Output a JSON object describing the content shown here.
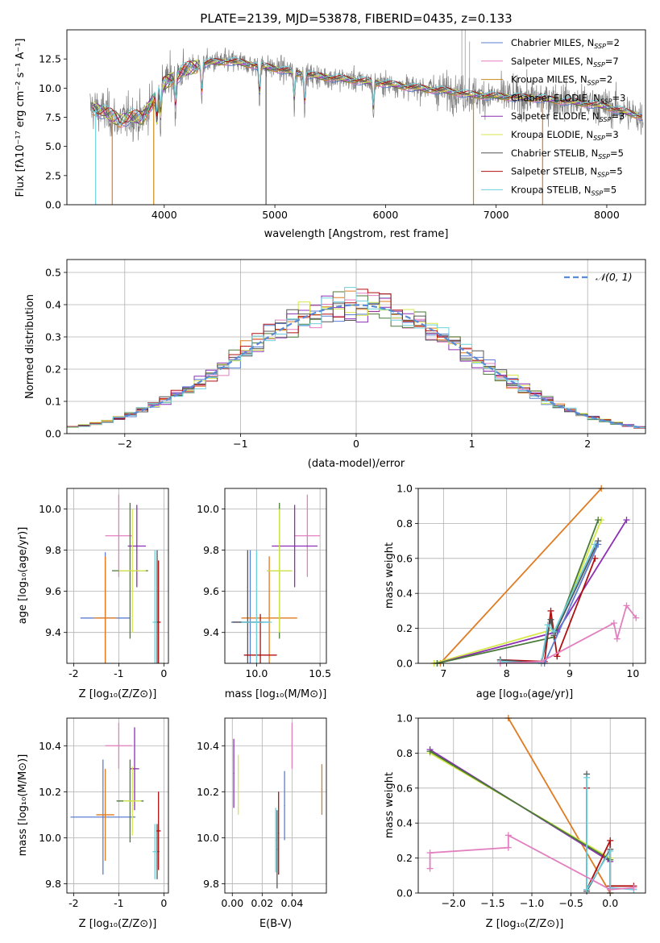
{
  "colors": {
    "chabrier_miles": "#5b7fd3",
    "salpeter_miles": "#e27fbf",
    "kroupa_miles": "#c98a1a",
    "chabrier_elodie": "#4a7a3a",
    "salpeter_elodie": "#8c2fb5",
    "kroupa_elodie": "#d6e84a",
    "chabrier_stelib": "#555555",
    "salpeter_stelib": "#b01010",
    "kroupa_stelib": "#6ed0dc",
    "normal_curve": "#5b8ad6",
    "orange": "#e07b22"
  },
  "chart_data": [
    {
      "id": "spectrum",
      "type": "line",
      "title": "PLATE=2139, MJD=53878, FIBERID=0435, z=0.133",
      "xlabel": "wavelength [Angstrom, rest frame]",
      "ylabel": "Flux [fλ10⁻¹⁷ erg cm⁻² s⁻¹ A⁻¹]",
      "xlim": [
        3120,
        8350
      ],
      "ylim": [
        0,
        15
      ],
      "xticks": [
        4000,
        5000,
        6000,
        7000,
        8000
      ],
      "yticks": [
        "0.0",
        "2.5",
        "5.0",
        "7.5",
        "10.0",
        "12.5"
      ],
      "grid": false,
      "legend_position": "right",
      "legend": [
        {
          "label": "Chabrier MILES, N",
          "sub": "SSP",
          "eq": "=2",
          "color_key": "chabrier_miles"
        },
        {
          "label": "Salpeter MILES, N",
          "sub": "SSP",
          "eq": "=7",
          "color_key": "salpeter_miles"
        },
        {
          "label": "Kroupa MILES, N",
          "sub": "SSP",
          "eq": "=2",
          "color_key": "kroupa_miles"
        },
        {
          "label": "Chabrier ELODIE, N",
          "sub": "SSP",
          "eq": "=3",
          "color_key": "chabrier_elodie"
        },
        {
          "label": "Salpeter ELODIE, N",
          "sub": "SSP",
          "eq": "=3",
          "color_key": "salpeter_elodie"
        },
        {
          "label": "Kroupa ELODIE, N",
          "sub": "SSP",
          "eq": "=3",
          "color_key": "kroupa_elodie"
        },
        {
          "label": "Chabrier STELIB, N",
          "sub": "SSP",
          "eq": "=5",
          "color_key": "chabrier_stelib"
        },
        {
          "label": "Salpeter STELIB, N",
          "sub": "SSP",
          "eq": "=5",
          "color_key": "salpeter_stelib"
        },
        {
          "label": "Kroupa STELIB, N",
          "sub": "SSP",
          "eq": "=5",
          "color_key": "kroupa_stelib"
        }
      ],
      "continuum": [
        [
          3350,
          8.3
        ],
        [
          3450,
          8.0
        ],
        [
          3600,
          7.2
        ],
        [
          3700,
          7.6
        ],
        [
          3800,
          7.4
        ],
        [
          3900,
          9.0
        ],
        [
          4000,
          10.4
        ],
        [
          4200,
          11.6
        ],
        [
          4400,
          12.2
        ],
        [
          4600,
          12.3
        ],
        [
          4800,
          12.0
        ],
        [
          5000,
          11.7
        ],
        [
          5200,
          11.3
        ],
        [
          5400,
          11.0
        ],
        [
          5600,
          10.8
        ],
        [
          5800,
          10.6
        ],
        [
          6000,
          10.4
        ],
        [
          6200,
          10.1
        ],
        [
          6400,
          9.9
        ],
        [
          6600,
          9.7
        ],
        [
          6800,
          9.4
        ],
        [
          7000,
          9.3
        ],
        [
          7200,
          9.2
        ],
        [
          7400,
          9.1
        ],
        [
          7600,
          8.9
        ],
        [
          7800,
          8.7
        ],
        [
          8000,
          8.4
        ],
        [
          8150,
          8.0
        ],
        [
          8300,
          7.6
        ]
      ],
      "drops": [
        {
          "x": 3380,
          "color_key": "kroupa_stelib"
        },
        {
          "x": 3530,
          "color_key": "orange"
        },
        {
          "x": 3905,
          "color_key": "kroupa_miles"
        },
        {
          "x": 4920,
          "color_key": "chabrier_stelib"
        },
        {
          "x": 6795,
          "color_key": "kroupa_miles"
        },
        {
          "x": 7420,
          "color_key": "orange"
        }
      ]
    },
    {
      "id": "residuals",
      "type": "step",
      "xlabel": "(data-model)/error",
      "ylabel": "Normed distribution",
      "xlim": [
        -2.5,
        2.5
      ],
      "ylim": [
        0,
        0.54
      ],
      "xticks": [
        "−2",
        "−1",
        "0",
        "1",
        "2"
      ],
      "yticks": [
        "0.0",
        "0.1",
        "0.2",
        "0.3",
        "0.4",
        "0.5"
      ],
      "grid": true,
      "legend_position": "top-right",
      "legend_label": "𝒩(0, 1)",
      "bin_width": 0.1,
      "n_series": 9
    },
    {
      "id": "age_vs_Z",
      "type": "scatter",
      "xlabel": "Z [log₁₀(Z/Z⊙)]",
      "ylabel": "age  [log₁₀(age/yr)]",
      "xlim": [
        -2.15,
        0.1
      ],
      "ylim": [
        9.25,
        10.1
      ],
      "xticks": [
        -2,
        -1,
        0
      ],
      "yticks": [
        "9.4",
        "9.6",
        "9.8",
        "10.0"
      ],
      "grid": true,
      "points": [
        {
          "x": -1.3,
          "y": 9.47,
          "xerr": 0.55,
          "yerr": 0.32,
          "color_key": "chabrier_miles"
        },
        {
          "x": -1.0,
          "y": 9.87,
          "xerr": 0.3,
          "yerr": 0.2,
          "color_key": "salpeter_miles"
        },
        {
          "x": -1.3,
          "y": 9.47,
          "xerr": 0.25,
          "yerr": 0.3,
          "color_key": "orange"
        },
        {
          "x": -0.75,
          "y": 9.7,
          "xerr": 0.4,
          "yerr": 0.33,
          "color_key": "chabrier_elodie"
        },
        {
          "x": -0.6,
          "y": 9.82,
          "xerr": 0.2,
          "yerr": 0.2,
          "color_key": "salpeter_elodie"
        },
        {
          "x": -0.7,
          "y": 9.7,
          "xerr": 0.3,
          "yerr": 0.3,
          "color_key": "kroupa_elodie"
        },
        {
          "x": -0.15,
          "y": 9.45,
          "xerr": 0.05,
          "yerr": 0.35,
          "color_key": "chabrier_stelib"
        },
        {
          "x": -0.12,
          "y": 9.45,
          "xerr": 0.05,
          "yerr": 0.3,
          "color_key": "salpeter_stelib"
        },
        {
          "x": -0.2,
          "y": 9.45,
          "xerr": 0.05,
          "yerr": 0.35,
          "color_key": "kroupa_stelib"
        }
      ]
    },
    {
      "id": "age_vs_mass",
      "type": "scatter",
      "xlabel": "mass [log₁₀(M/M⊙)]",
      "ylabel": "",
      "xlim": [
        9.75,
        10.55
      ],
      "ylim": [
        9.25,
        10.1
      ],
      "xticks": [
        "10.0",
        "10.5"
      ],
      "yticks": [
        "9.4",
        "9.6",
        "9.8",
        "10.0"
      ],
      "grid": true,
      "points": [
        {
          "x": 9.95,
          "y": 9.45,
          "xerr": 0.15,
          "yerr": 0.35,
          "color_key": "chabrier_miles"
        },
        {
          "x": 10.4,
          "y": 9.87,
          "xerr": 0.1,
          "yerr": 0.2,
          "color_key": "salpeter_miles"
        },
        {
          "x": 10.1,
          "y": 9.47,
          "xerr": 0.22,
          "yerr": 0.3,
          "color_key": "orange"
        },
        {
          "x": 10.18,
          "y": 9.7,
          "xerr": 0.1,
          "yerr": 0.33,
          "color_key": "chabrier_elodie"
        },
        {
          "x": 10.3,
          "y": 9.82,
          "xerr": 0.18,
          "yerr": 0.2,
          "color_key": "salpeter_elodie"
        },
        {
          "x": 10.18,
          "y": 9.7,
          "xerr": 0.1,
          "yerr": 0.3,
          "color_key": "kroupa_elodie"
        },
        {
          "x": 9.93,
          "y": 9.45,
          "xerr": 0.12,
          "yerr": 0.35,
          "color_key": "chabrier_stelib"
        },
        {
          "x": 10.03,
          "y": 9.29,
          "xerr": 0.13,
          "yerr": 0.2,
          "color_key": "salpeter_stelib"
        },
        {
          "x": 10.0,
          "y": 9.45,
          "xerr": 0.12,
          "yerr": 0.35,
          "color_key": "kroupa_stelib"
        }
      ]
    },
    {
      "id": "weight_vs_age",
      "type": "line",
      "xlabel": "age  [log₁₀(age/yr)]",
      "ylabel": "mass weight",
      "xlim": [
        6.6,
        10.2
      ],
      "ylim": [
        0,
        1
      ],
      "xticks": [
        7,
        8,
        9,
        10
      ],
      "yticks": [
        "0.0",
        "0.2",
        "0.4",
        "0.6",
        "0.8",
        "1.0"
      ],
      "grid": true,
      "series": [
        {
          "color_key": "orange",
          "x": [
            6.85,
            6.95,
            9.5
          ],
          "y": [
            0.0,
            0.0,
            1.0
          ]
        },
        {
          "color_key": "kroupa_elodie",
          "x": [
            6.85,
            8.8,
            9.5
          ],
          "y": [
            0.0,
            0.2,
            0.82
          ]
        },
        {
          "color_key": "salpeter_elodie",
          "x": [
            6.9,
            8.8,
            9.9
          ],
          "y": [
            0.0,
            0.18,
            0.82
          ]
        },
        {
          "color_key": "chabrier_elodie",
          "x": [
            6.9,
            8.75,
            9.45
          ],
          "y": [
            0.0,
            0.15,
            0.82
          ]
        },
        {
          "color_key": "salpeter_stelib",
          "x": [
            7.9,
            8.6,
            8.7,
            8.8,
            9.4
          ],
          "y": [
            0.02,
            0.01,
            0.3,
            0.04,
            0.6
          ]
        },
        {
          "color_key": "chabrier_stelib",
          "x": [
            7.9,
            8.55,
            8.7,
            8.75,
            9.45
          ],
          "y": [
            0.02,
            0.0,
            0.25,
            0.16,
            0.7
          ]
        },
        {
          "color_key": "kroupa_stelib",
          "x": [
            7.9,
            8.55,
            8.65,
            8.75,
            9.4
          ],
          "y": [
            0.01,
            0.0,
            0.22,
            0.18,
            0.68
          ]
        },
        {
          "color_key": "chabrier_miles",
          "x": [
            8.6,
            9.45
          ],
          "y": [
            0.0,
            0.68
          ]
        },
        {
          "color_key": "salpeter_miles",
          "x": [
            7.9,
            8.55,
            9.7,
            9.75,
            9.9,
            10.05
          ],
          "y": [
            0.0,
            0.01,
            0.23,
            0.14,
            0.33,
            0.26
          ]
        }
      ]
    },
    {
      "id": "mass_vs_Z",
      "type": "scatter",
      "xlabel": "Z [log₁₀(Z/Z⊙)]",
      "ylabel": "mass [log₁₀(M/M⊙)]",
      "xlim": [
        -2.15,
        0.1
      ],
      "ylim": [
        9.76,
        10.52
      ],
      "xticks": [
        -2,
        -1,
        0
      ],
      "yticks": [
        "9.8",
        "10.0",
        "10.2",
        "10.4"
      ],
      "grid": true,
      "points": [
        {
          "x": -1.35,
          "y": 10.09,
          "xerr": 0.72,
          "yerr": 0.25,
          "color_key": "chabrier_miles"
        },
        {
          "x": -1.0,
          "y": 10.4,
          "xerr": 0.3,
          "yerr": 0.1,
          "color_key": "salpeter_miles"
        },
        {
          "x": -1.3,
          "y": 10.1,
          "xerr": 0.2,
          "yerr": 0.2,
          "color_key": "orange"
        },
        {
          "x": -0.75,
          "y": 10.16,
          "xerr": 0.3,
          "yerr": 0.18,
          "color_key": "chabrier_elodie"
        },
        {
          "x": -0.65,
          "y": 10.3,
          "xerr": 0.1,
          "yerr": 0.18,
          "color_key": "salpeter_elodie"
        },
        {
          "x": -0.7,
          "y": 10.16,
          "xerr": 0.2,
          "yerr": 0.15,
          "color_key": "kroupa_elodie"
        },
        {
          "x": -0.15,
          "y": 9.94,
          "xerr": 0.05,
          "yerr": 0.12,
          "color_key": "chabrier_stelib"
        },
        {
          "x": -0.12,
          "y": 10.03,
          "xerr": 0.05,
          "yerr": 0.17,
          "color_key": "salpeter_stelib"
        },
        {
          "x": -0.2,
          "y": 9.94,
          "xerr": 0.05,
          "yerr": 0.12,
          "color_key": "kroupa_stelib"
        }
      ]
    },
    {
      "id": "mass_vs_ebv",
      "type": "scatter",
      "xlabel": "E(B-V)",
      "ylabel": "",
      "xlim": [
        -0.005,
        0.063
      ],
      "ylim": [
        9.76,
        10.52
      ],
      "xticks": [
        "0.00",
        "0.02",
        "0.04"
      ],
      "yticks": [
        "9.8",
        "10.0",
        "10.2",
        "10.4"
      ],
      "grid": true,
      "points": [
        {
          "x": 0.035,
          "y": 10.14,
          "yerr": 0.15,
          "color_key": "chabrier_miles"
        },
        {
          "x": 0.04,
          "y": 10.4,
          "yerr": 0.1,
          "color_key": "salpeter_miles"
        },
        {
          "x": 0.06,
          "y": 10.21,
          "yerr": 0.11,
          "color_key": "orange"
        },
        {
          "x": 0.001,
          "y": 10.28,
          "yerr": 0.15,
          "color_key": "salpeter_elodie"
        },
        {
          "x": 0.004,
          "y": 10.23,
          "yerr": 0.13,
          "color_key": "kroupa_elodie"
        },
        {
          "x": 0.03,
          "y": 9.95,
          "yerr": 0.17,
          "color_key": "chabrier_stelib"
        },
        {
          "x": 0.031,
          "y": 10.02,
          "yerr": 0.18,
          "color_key": "salpeter_stelib"
        },
        {
          "x": 0.029,
          "y": 9.99,
          "yerr": 0.14,
          "color_key": "kroupa_stelib"
        }
      ]
    },
    {
      "id": "weight_vs_Z",
      "type": "line",
      "xlabel": "Z [log₁₀(Z/Z⊙)]",
      "ylabel": "mass weight",
      "xlim": [
        -2.45,
        0.45
      ],
      "ylim": [
        0,
        1
      ],
      "xticks": [
        "−2.0",
        "−1.5",
        "−1.0",
        "−0.5",
        "0.0"
      ],
      "yticks": [
        "0.0",
        "0.2",
        "0.4",
        "0.6",
        "0.8",
        "1.0"
      ],
      "grid": true,
      "series": [
        {
          "color_key": "orange",
          "x": [
            -1.3,
            0.0
          ],
          "y": [
            1.0,
            0.0
          ]
        },
        {
          "color_key": "kroupa_elodie",
          "x": [
            -2.3,
            0.0
          ],
          "y": [
            0.8,
            0.2
          ]
        },
        {
          "color_key": "salpeter_elodie",
          "x": [
            -2.3,
            0.0
          ],
          "y": [
            0.82,
            0.18
          ]
        },
        {
          "color_key": "chabrier_elodie",
          "x": [
            -2.3,
            0.0
          ],
          "y": [
            0.81,
            0.19
          ]
        },
        {
          "color_key": "salpeter_stelib",
          "x": [
            -0.3,
            -0.3,
            0.0,
            0.0,
            0.3
          ],
          "y": [
            0.6,
            0.02,
            0.3,
            0.04,
            0.04
          ]
        },
        {
          "color_key": "chabrier_stelib",
          "x": [
            -0.3,
            -0.3,
            0.0,
            0.0
          ],
          "y": [
            0.68,
            0.01,
            0.25,
            0.0
          ]
        },
        {
          "color_key": "kroupa_stelib",
          "x": [
            -0.3,
            -0.3,
            0.0,
            0.0,
            0.3
          ],
          "y": [
            0.66,
            0.02,
            0.24,
            0.03,
            0.02
          ]
        },
        {
          "color_key": "salpeter_miles",
          "x": [
            -2.3,
            -2.3,
            -1.3,
            -1.3,
            0.0,
            0.3
          ],
          "y": [
            0.14,
            0.23,
            0.26,
            0.33,
            0.02,
            0.03
          ]
        }
      ]
    }
  ]
}
